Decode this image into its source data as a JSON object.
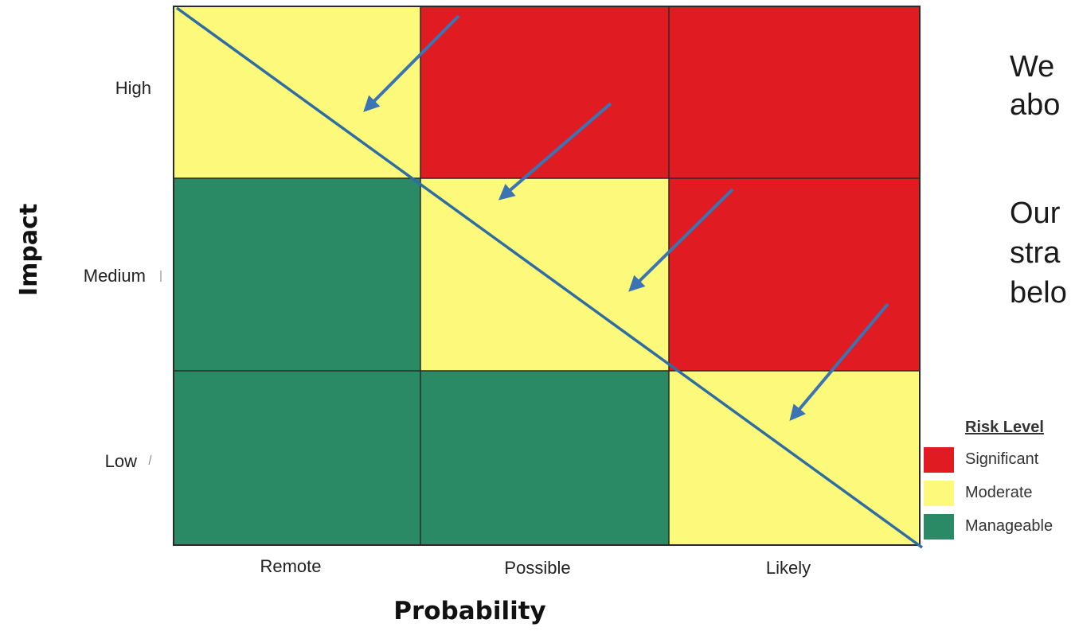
{
  "chart": {
    "y_title": "Impact",
    "x_title": "Probability",
    "rows": [
      "High",
      "Medium",
      "Low"
    ],
    "columns": [
      "Remote",
      "Possible",
      "Likely"
    ],
    "cells": [
      [
        "Moderate",
        "Significant",
        "Significant"
      ],
      [
        "Manageable",
        "Moderate",
        "Significant"
      ],
      [
        "Manageable",
        "Manageable",
        "Moderate"
      ]
    ]
  },
  "legend": {
    "title": "Risk Level",
    "items": [
      {
        "label": "Significant",
        "color": "#e01b22"
      },
      {
        "label": "Moderate",
        "color": "#fdf97a"
      },
      {
        "label": "Manageable",
        "color": "#2b8a66"
      }
    ]
  },
  "side_text": {
    "line1": "We",
    "line2": "abo",
    "line3": "Our",
    "line4": "stra",
    "line5": "belo"
  },
  "colors": {
    "diagonal_line": "#2e6da4",
    "arrows": "#3a74b4",
    "grid_lines": "#2a2a2a"
  }
}
